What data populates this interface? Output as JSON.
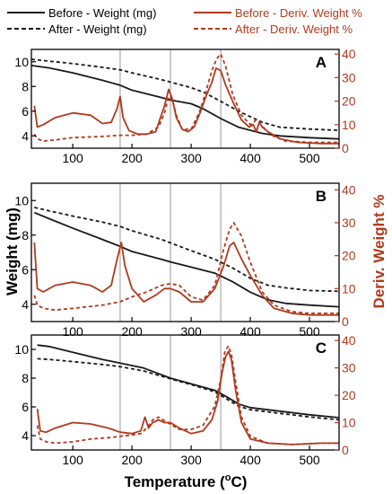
{
  "colors": {
    "weight": "#1a1a1a",
    "deriv": "#b03a1e",
    "vline": "#9a9a9a",
    "axis": "#000000"
  },
  "legend": {
    "before_weight": "Before - Weight (mg)",
    "after_weight": "After - Weight (mg)",
    "before_deriv": "Before - Deriv. Weight %",
    "after_deriv": "After - Deriv. Weight %"
  },
  "axes": {
    "xlabel": "Temperature (°C)",
    "xlabel_main": "Temperature (",
    "xlabel_degree": "o",
    "xlabel_unit": "C)",
    "ylabel_left": "Weight (mg)",
    "ylabel_right": "Deriv. Weight %"
  },
  "chart_data": [
    {
      "type": "line",
      "panel": "A",
      "xlim": [
        30,
        550
      ],
      "ylim_left": [
        3,
        11
      ],
      "ylim_right": [
        0,
        42
      ],
      "x_ticks": [
        100,
        200,
        300,
        400,
        500
      ],
      "y_left_ticks": [
        4,
        6,
        8,
        10
      ],
      "y_right_ticks": [
        0,
        10,
        20,
        30,
        40
      ],
      "vlines": [
        180,
        265,
        350
      ],
      "series": [
        {
          "name": "Before - Weight (mg)",
          "axis": "left",
          "style": "solid",
          "color": "weight",
          "x": [
            30,
            60,
            100,
            150,
            180,
            200,
            250,
            265,
            300,
            320,
            350,
            380,
            420,
            450,
            500,
            550
          ],
          "y": [
            9.7,
            9.5,
            9.1,
            8.5,
            8.1,
            7.7,
            7.1,
            6.9,
            6.6,
            6.2,
            5.4,
            4.7,
            4.2,
            4.0,
            3.85,
            3.75
          ]
        },
        {
          "name": "After - Weight (mg)",
          "axis": "left",
          "style": "dashed",
          "color": "weight",
          "x": [
            30,
            60,
            100,
            150,
            180,
            200,
            250,
            265,
            300,
            320,
            350,
            380,
            420,
            450,
            500,
            550
          ],
          "y": [
            10.2,
            10.05,
            9.85,
            9.55,
            9.35,
            9.1,
            8.55,
            8.35,
            7.9,
            7.55,
            6.8,
            6.0,
            5.1,
            4.7,
            4.55,
            4.45
          ]
        },
        {
          "name": "Before - Deriv. Weight %",
          "axis": "right",
          "style": "solid",
          "color": "deriv",
          "x": [
            35,
            40,
            50,
            70,
            100,
            130,
            150,
            165,
            175,
            180,
            185,
            195,
            210,
            225,
            240,
            255,
            262,
            268,
            275,
            285,
            295,
            305,
            315,
            325,
            335,
            342,
            350,
            358,
            370,
            385,
            398,
            405,
            410,
            415,
            420,
            430,
            450,
            480,
            520,
            550
          ],
          "y": [
            18,
            9,
            10,
            13,
            15,
            14,
            10.5,
            11,
            17,
            22,
            13,
            7.5,
            6,
            6,
            7,
            18,
            25,
            21,
            13,
            8,
            7,
            9,
            15,
            22,
            28,
            34,
            33,
            27,
            20,
            12,
            9,
            10,
            7,
            11,
            9,
            7,
            4,
            2.5,
            2,
            2
          ]
        },
        {
          "name": "After - Deriv. Weight %",
          "axis": "right",
          "style": "dashed",
          "color": "deriv",
          "x": [
            35,
            40,
            50,
            70,
            100,
            150,
            180,
            200,
            225,
            245,
            255,
            262,
            268,
            275,
            285,
            300,
            315,
            325,
            335,
            343,
            350,
            358,
            370,
            385,
            400,
            410,
            415,
            425,
            440,
            460,
            500,
            550
          ],
          "y": [
            6,
            4,
            3,
            3.5,
            4.5,
            5,
            5.5,
            5.5,
            6,
            9,
            15,
            22,
            21,
            14,
            8,
            8,
            16,
            24,
            33,
            38,
            40,
            35,
            23,
            14,
            10,
            12,
            11,
            8,
            5,
            3,
            2.5,
            2.5
          ]
        }
      ]
    },
    {
      "type": "line",
      "panel": "B",
      "xlim": [
        30,
        550
      ],
      "ylim_left": [
        3,
        11
      ],
      "ylim_right": [
        0,
        42
      ],
      "x_ticks": [
        100,
        200,
        300,
        400,
        500
      ],
      "y_left_ticks": [
        4,
        6,
        8,
        10
      ],
      "y_right_ticks": [
        0,
        10,
        20,
        30,
        40
      ],
      "vlines": [
        180,
        265,
        350
      ],
      "series": [
        {
          "name": "Before - Weight (mg)",
          "axis": "left",
          "style": "solid",
          "color": "weight",
          "x": [
            35,
            60,
            100,
            150,
            180,
            200,
            250,
            265,
            300,
            340,
            370,
            400,
            430,
            460,
            500,
            550
          ],
          "y": [
            9.3,
            8.95,
            8.4,
            7.75,
            7.35,
            7.05,
            6.6,
            6.45,
            6.15,
            5.8,
            5.3,
            4.7,
            4.25,
            4.05,
            3.95,
            3.85
          ]
        },
        {
          "name": "After - Weight (mg)",
          "axis": "left",
          "style": "dashed",
          "color": "weight",
          "x": [
            35,
            60,
            100,
            150,
            180,
            200,
            250,
            265,
            300,
            340,
            370,
            400,
            430,
            460,
            500,
            550
          ],
          "y": [
            9.6,
            9.4,
            9.1,
            8.75,
            8.5,
            8.25,
            7.75,
            7.55,
            7.1,
            6.6,
            6.1,
            5.5,
            5.1,
            4.95,
            4.8,
            4.75
          ]
        },
        {
          "name": "Before - Deriv. Weight %",
          "axis": "right",
          "style": "solid",
          "color": "deriv",
          "x": [
            35,
            40,
            50,
            70,
            100,
            130,
            150,
            165,
            175,
            182,
            188,
            200,
            220,
            240,
            255,
            265,
            280,
            300,
            320,
            340,
            355,
            365,
            372,
            385,
            400,
            420,
            440,
            470,
            500,
            550
          ],
          "y": [
            24,
            10,
            9,
            11,
            12,
            11,
            9,
            11,
            19,
            24,
            17,
            10,
            6,
            8,
            10,
            10,
            9,
            6,
            6,
            10,
            17,
            23,
            24,
            19,
            14,
            8,
            4,
            2.5,
            2,
            2
          ]
        },
        {
          "name": "After - Deriv. Weight %",
          "axis": "right",
          "style": "dashed",
          "color": "deriv",
          "x": [
            35,
            40,
            50,
            70,
            100,
            150,
            180,
            200,
            225,
            250,
            265,
            280,
            300,
            320,
            340,
            355,
            365,
            372,
            385,
            400,
            420,
            440,
            470,
            500,
            550
          ],
          "y": [
            8,
            5,
            4,
            3.5,
            4,
            5,
            6,
            7.5,
            9,
            11,
            11.5,
            11,
            7.5,
            6.5,
            11,
            22,
            28,
            30,
            26,
            18,
            9,
            5,
            3,
            2.5,
            2.5
          ]
        }
      ]
    },
    {
      "type": "line",
      "panel": "C",
      "xlim": [
        30,
        550
      ],
      "ylim_left": [
        3,
        11
      ],
      "ylim_right": [
        0,
        42
      ],
      "x_ticks": [
        100,
        200,
        300,
        400,
        500
      ],
      "y_left_ticks": [
        4,
        6,
        8,
        10
      ],
      "y_right_ticks": [
        0,
        10,
        20,
        30,
        40
      ],
      "vlines": [
        180,
        265,
        350
      ],
      "series": [
        {
          "name": "Before - Weight (mg)",
          "axis": "left",
          "style": "solid",
          "color": "weight",
          "x": [
            40,
            60,
            100,
            150,
            180,
            220,
            265,
            300,
            340,
            360,
            380,
            400,
            450,
            500,
            550
          ],
          "y": [
            10.3,
            10.2,
            9.8,
            9.3,
            9.05,
            8.7,
            8.0,
            7.6,
            7.15,
            6.7,
            6.2,
            5.95,
            5.7,
            5.45,
            5.25
          ]
        },
        {
          "name": "After - Weight (mg)",
          "axis": "left",
          "style": "dashed",
          "color": "weight",
          "x": [
            40,
            60,
            100,
            150,
            180,
            220,
            265,
            300,
            340,
            360,
            380,
            400,
            450,
            500,
            550
          ],
          "y": [
            9.35,
            9.3,
            9.15,
            8.95,
            8.8,
            8.5,
            7.95,
            7.55,
            7.05,
            6.55,
            6.05,
            5.8,
            5.55,
            5.3,
            5.1
          ]
        },
        {
          "name": "Before - Deriv. Weight %",
          "axis": "right",
          "style": "solid",
          "color": "deriv",
          "x": [
            40,
            45,
            55,
            70,
            100,
            130,
            160,
            180,
            200,
            215,
            222,
            228,
            235,
            245,
            255,
            265,
            280,
            300,
            320,
            335,
            345,
            352,
            358,
            363,
            368,
            375,
            385,
            400,
            430,
            470,
            520,
            550
          ],
          "y": [
            15,
            7,
            6.5,
            8,
            10,
            9.5,
            8,
            6.5,
            6,
            7,
            12,
            8,
            10,
            11,
            10,
            10,
            8,
            6,
            7,
            11,
            18,
            28,
            34,
            36,
            33,
            22,
            10,
            4,
            2.5,
            2,
            2.5,
            2.5
          ]
        },
        {
          "name": "After - Deriv. Weight %",
          "axis": "right",
          "style": "dashed",
          "color": "deriv",
          "x": [
            40,
            45,
            55,
            70,
            100,
            130,
            160,
            180,
            200,
            215,
            225,
            235,
            245,
            260,
            280,
            300,
            320,
            340,
            350,
            357,
            363,
            368,
            375,
            385,
            400,
            430,
            470,
            520,
            550
          ],
          "y": [
            9,
            4,
            3,
            2.5,
            3,
            4,
            4.5,
            5,
            5.5,
            6,
            8,
            11,
            12,
            10,
            7.5,
            7.5,
            9,
            16,
            26,
            36,
            38,
            35,
            25,
            12,
            5,
            2.5,
            2,
            2.5,
            2.5
          ]
        }
      ]
    }
  ]
}
